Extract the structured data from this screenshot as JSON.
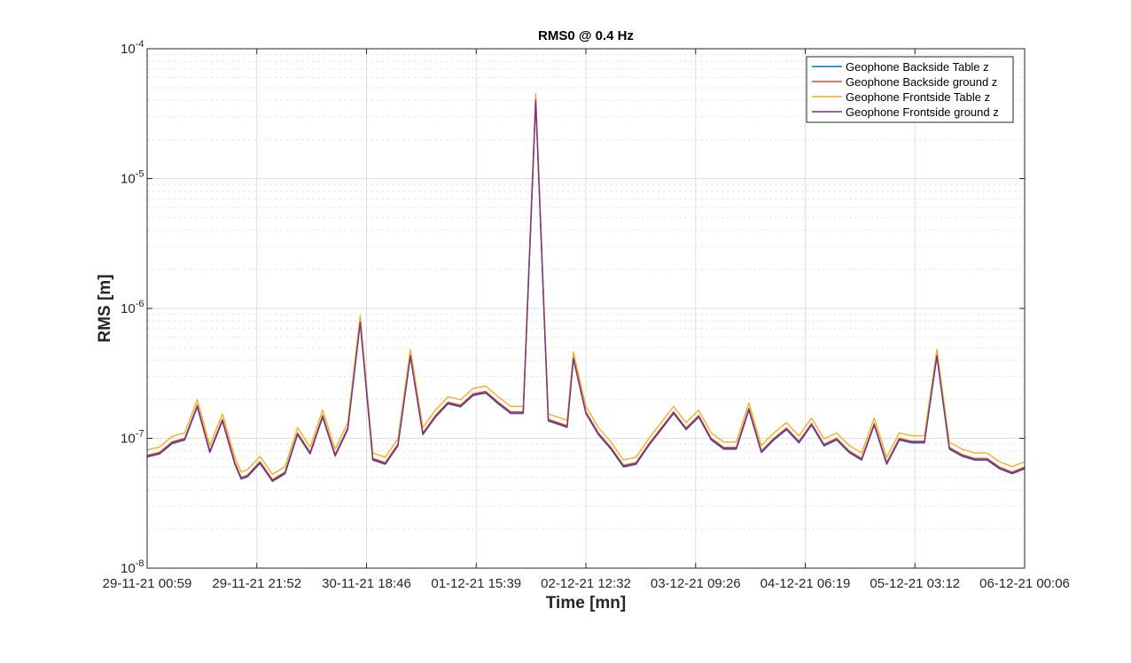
{
  "chart_data": {
    "type": "line",
    "title": "RMS0 @ 0.4 Hz",
    "xlabel": "Time [mn]",
    "ylabel": "RMS [m]",
    "y_scale": "log",
    "ylim": [
      1e-08,
      0.0001
    ],
    "xlim": [
      "29-11-21 00:59",
      "06-12-21 00:06"
    ],
    "x_tick_labels": [
      "29-11-21 00:59",
      "29-11-21 21:52",
      "30-11-21 18:46",
      "01-12-21 15:39",
      "02-12-21 12:32",
      "03-12-21 09:26",
      "04-12-21 06:19",
      "05-12-21 03:12",
      "06-12-21 00:06"
    ],
    "y_ticks": [
      {
        "value": 1e-08,
        "base": "10",
        "exponent": "-8"
      },
      {
        "value": 1e-07,
        "base": "10",
        "exponent": "-7"
      },
      {
        "value": 1e-06,
        "base": "10",
        "exponent": "-6"
      },
      {
        "value": 1e-05,
        "base": "10",
        "exponent": "-5"
      },
      {
        "value": 0.0001,
        "base": "10",
        "exponent": "-4"
      }
    ],
    "grid": true,
    "minor_grid": true,
    "legend_position": "top-right",
    "series": [
      {
        "name": "Geophone Backside Table z",
        "color": "#0072BD",
        "offset": 0.97
      },
      {
        "name": "Geophone Backside ground z",
        "color": "#D95319",
        "offset": 1.0
      },
      {
        "name": "Geophone Frontside Table z",
        "color": "#EDB120",
        "offset": 1.1
      },
      {
        "name": "Geophone Frontside ground z",
        "color": "#7E2F8E",
        "offset": 0.98
      }
    ],
    "x_days": [
      0,
      0.1,
      0.2,
      0.3,
      0.4,
      0.5,
      0.6,
      0.7,
      0.75,
      0.8,
      0.9,
      1.0,
      1.1,
      1.2,
      1.3,
      1.4,
      1.5,
      1.6,
      1.7,
      1.8,
      1.9,
      2.0,
      2.1,
      2.2,
      2.3,
      2.4,
      2.5,
      2.6,
      2.7,
      2.8,
      2.9,
      3.0,
      3.1,
      3.2,
      3.3,
      3.35,
      3.4,
      3.5,
      3.6,
      3.7,
      3.8,
      3.9,
      4.0,
      4.1,
      4.2,
      4.3,
      4.4,
      4.5,
      4.6,
      4.7,
      4.8,
      4.9,
      5.0,
      5.1,
      5.2,
      5.3,
      5.4,
      5.5,
      5.6,
      5.7,
      5.8,
      5.9,
      6.0,
      6.1,
      6.2,
      6.3,
      6.4,
      6.5,
      6.6,
      6.7,
      6.8,
      6.9,
      7.0
    ],
    "base_values": [
      7.4e-08,
      7.8e-08,
      9.4e-08,
      1e-07,
      1.8e-07,
      8e-08,
      1.4e-07,
      6.5e-08,
      5e-08,
      5.2e-08,
      6.6e-08,
      4.8e-08,
      5.5e-08,
      1.1e-07,
      7.8e-08,
      1.5e-07,
      7.5e-08,
      1.2e-07,
      8e-07,
      7e-08,
      6.5e-08,
      9e-08,
      4.4e-07,
      1.1e-07,
      1.5e-07,
      1.9e-07,
      1.8e-07,
      2.2e-07,
      2.3e-07,
      1.9e-07,
      1.6e-07,
      1.6e-07,
      4.1e-05,
      1.4e-07,
      1.3e-07,
      1.25e-07,
      4.2e-07,
      1.6e-07,
      1.1e-07,
      8.5e-08,
      6.2e-08,
      6.5e-08,
      9e-08,
      1.2e-07,
      1.6e-07,
      1.2e-07,
      1.5e-07,
      1e-07,
      8.5e-08,
      8.5e-08,
      1.7e-07,
      8e-08,
      1e-07,
      1.2e-07,
      9.5e-08,
      1.3e-07,
      9e-08,
      1e-07,
      8e-08,
      7e-08,
      1.3e-07,
      6.5e-08,
      1e-07,
      9.5e-08,
      9.5e-08,
      4.4e-07,
      8.5e-08,
      7.5e-08,
      7e-08,
      7e-08,
      6e-08,
      5.5e-08,
      6e-08
    ]
  }
}
